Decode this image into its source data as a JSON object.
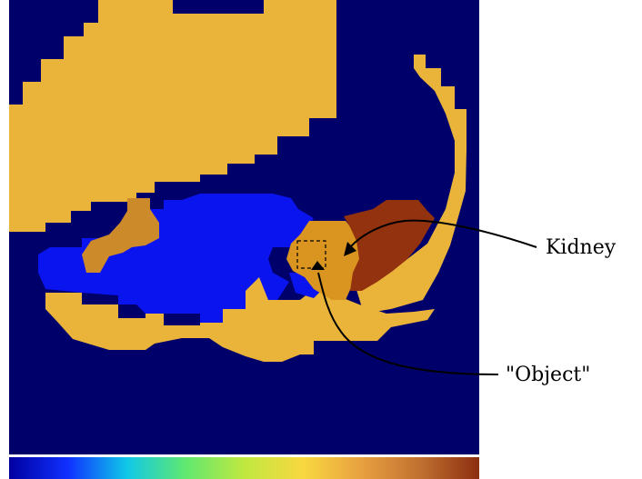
{
  "labels": {
    "kidney": "Kidney",
    "object": "\"Object\""
  },
  "colors": {
    "background": "#00006b",
    "tissue_yellow": "#eab43a",
    "blue_region": "#0a14ee",
    "brown_region": "#cc8a2a",
    "dark_brown_region": "#93320f",
    "mid_orange_region": "#d9951f"
  },
  "colorbar": {
    "stops": [
      "#0000a0",
      "#1030ff",
      "#10c8e8",
      "#60e870",
      "#c0e840",
      "#f8d840",
      "#e8a040",
      "#c07030",
      "#8c2e10"
    ]
  }
}
